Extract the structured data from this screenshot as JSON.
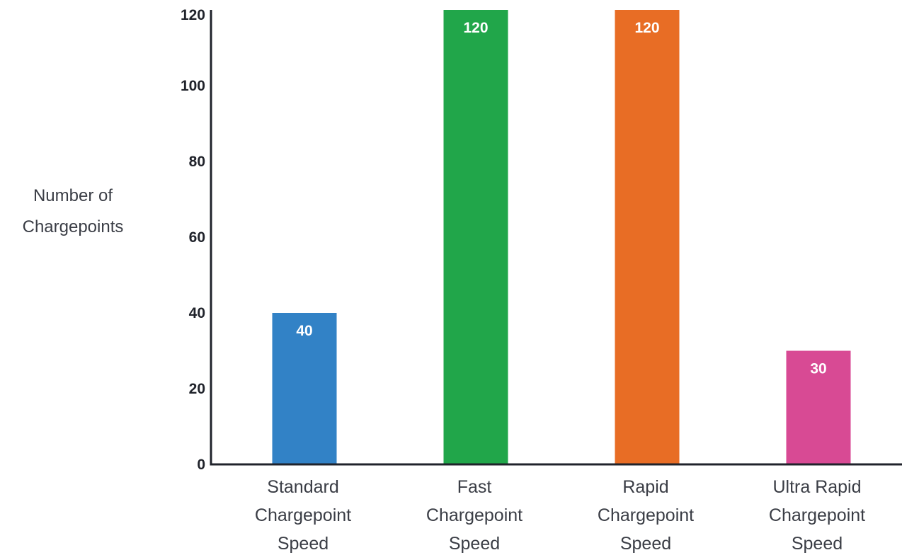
{
  "chart_data": {
    "type": "bar",
    "title": "",
    "ylabel_lines": [
      "Number of",
      "Chargepoints"
    ],
    "xlabel": "",
    "ylim": [
      0,
      120
    ],
    "yticks": [
      "0",
      "20",
      "40",
      "60",
      "80",
      "100",
      "120"
    ],
    "categories": [
      [
        "Standard",
        "Chargepoint",
        "Speed"
      ],
      [
        "Fast",
        "Chargepoint",
        "Speed"
      ],
      [
        "Rapid",
        "Chargepoint",
        "Speed"
      ],
      [
        "Ultra Rapid",
        "Chargepoint",
        "Speed"
      ]
    ],
    "values": [
      40,
      120,
      120,
      30
    ],
    "data_labels": [
      "40",
      "120",
      "120",
      "30"
    ],
    "colors": [
      "#3282c6",
      "#21a64a",
      "#e86d25",
      "#d84a94"
    ],
    "axis_color": "#20232b",
    "grid": false,
    "legend": "none"
  }
}
